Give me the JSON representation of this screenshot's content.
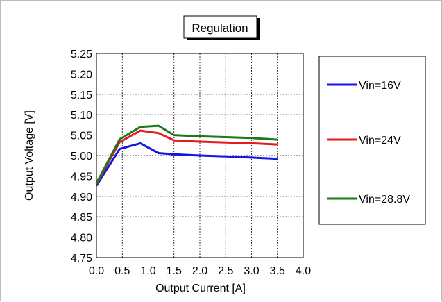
{
  "chart_data": {
    "type": "line",
    "title": "Regulation",
    "xlabel": "Output Current [A]",
    "ylabel": "Output Voltage [V]",
    "xlim": [
      0.0,
      4.0
    ],
    "ylim": [
      4.75,
      5.25
    ],
    "x_ticks": [
      "0.0",
      "0.5",
      "1.0",
      "1.5",
      "2.0",
      "2.5",
      "3.0",
      "3.5",
      "4.0"
    ],
    "y_ticks": [
      "5.25",
      "5.20",
      "5.15",
      "5.10",
      "5.05",
      "5.00",
      "4.95",
      "4.90",
      "4.85",
      "4.80",
      "4.75"
    ],
    "grid": true,
    "legend_position": "right",
    "series": [
      {
        "name": "Vin=16V",
        "color": "#1515e6",
        "x": [
          0.0,
          0.45,
          0.85,
          1.2,
          1.5,
          2.0,
          2.5,
          3.0,
          3.5
        ],
        "y": [
          4.926,
          5.016,
          5.03,
          5.006,
          5.003,
          5.0,
          4.998,
          4.995,
          4.992
        ]
      },
      {
        "name": "Vin=24V",
        "color": "#e61b1b",
        "x": [
          0.0,
          0.45,
          0.85,
          1.2,
          1.5,
          2.0,
          2.5,
          3.0,
          3.5
        ],
        "y": [
          4.93,
          5.033,
          5.061,
          5.055,
          5.037,
          5.034,
          5.032,
          5.03,
          5.027
        ]
      },
      {
        "name": "Vin=28.8V",
        "color": "#1a7a1a",
        "x": [
          0.0,
          0.45,
          0.85,
          1.2,
          1.5,
          2.0,
          2.5,
          3.0,
          3.5
        ],
        "y": [
          4.932,
          5.04,
          5.07,
          5.073,
          5.05,
          5.047,
          5.045,
          5.043,
          5.039
        ]
      }
    ]
  }
}
